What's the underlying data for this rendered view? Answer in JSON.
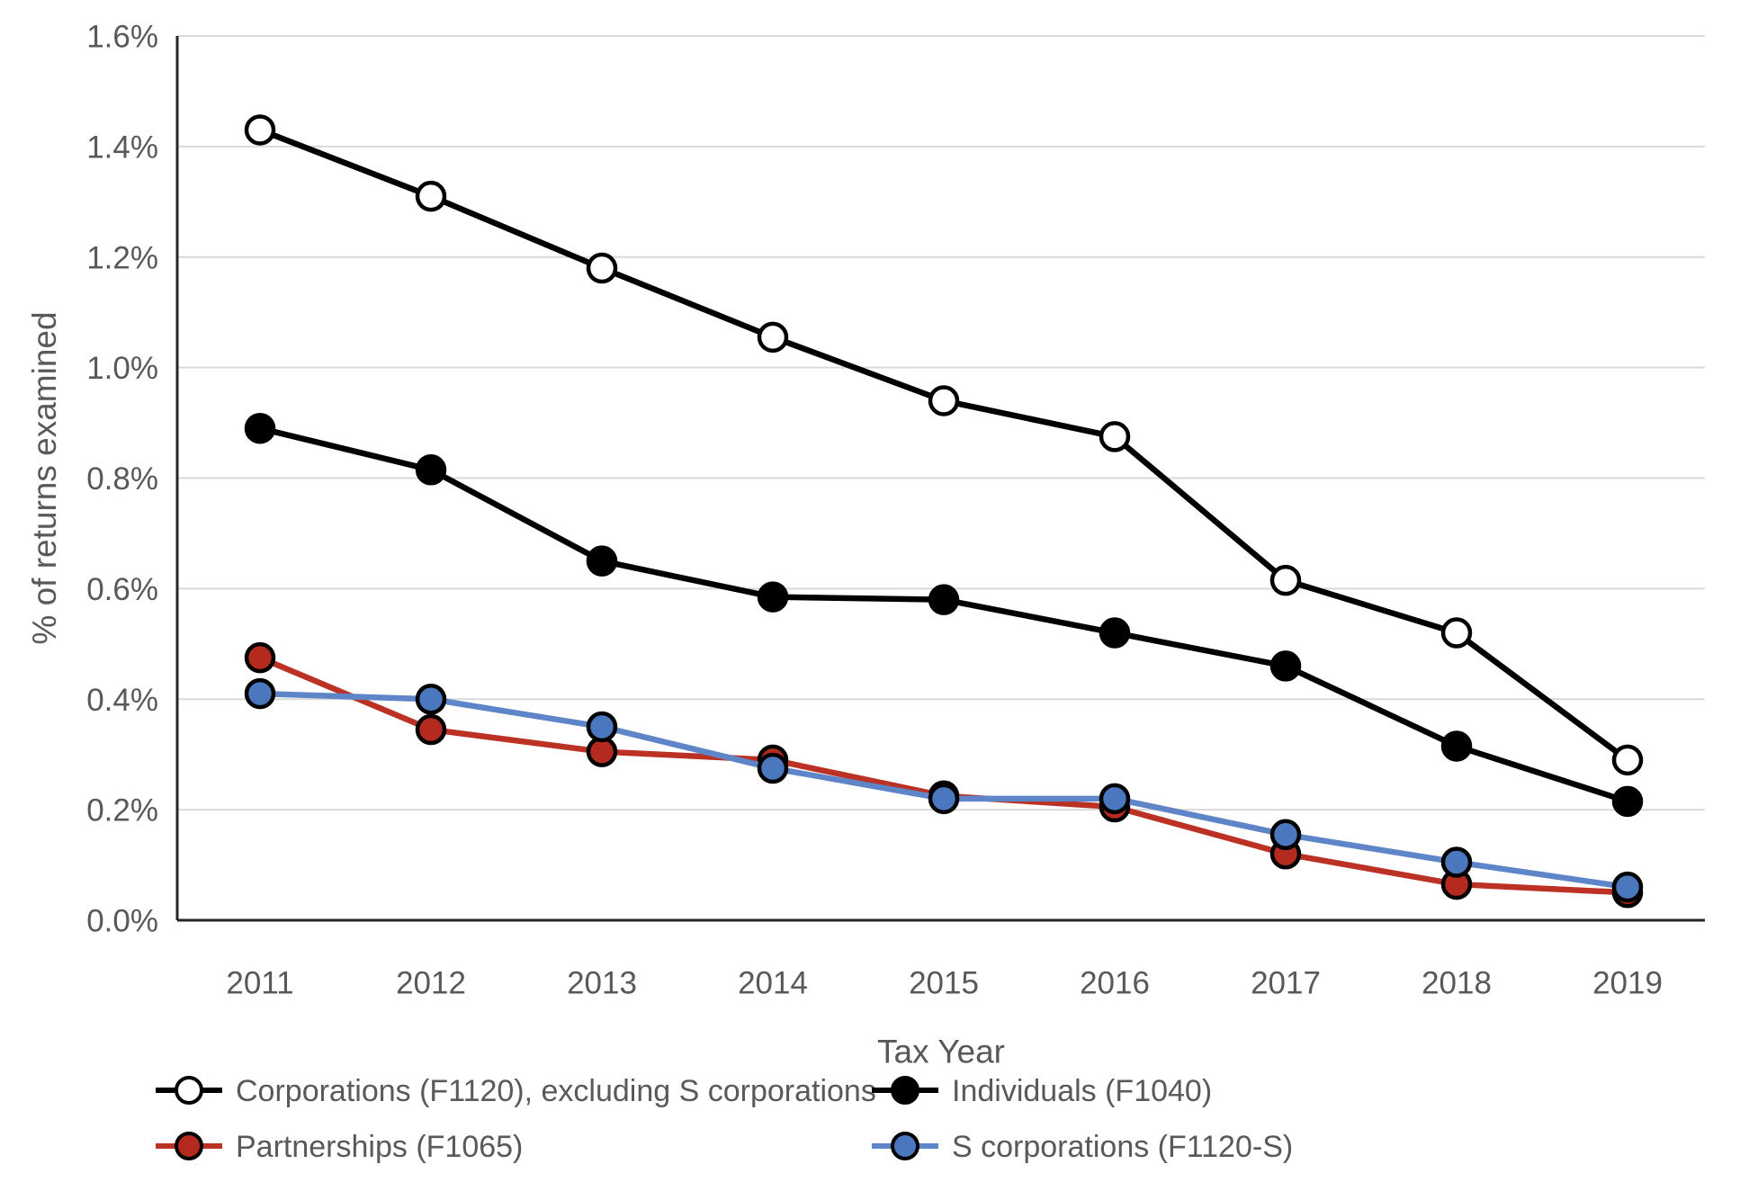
{
  "figure": {
    "description": "Line chart of IRS audit rates by return type, tax years 2011 to 2019"
  },
  "chart_data": {
    "type": "line",
    "title": "",
    "xlabel": "Tax Year",
    "ylabel": "% of returns examined",
    "x_categories": [
      "2011",
      "2012",
      "2013",
      "2014",
      "2015",
      "2016",
      "2017",
      "2018",
      "2019"
    ],
    "y_ticks": [
      "0.0%",
      "0.2%",
      "0.4%",
      "0.6%",
      "0.8%",
      "1.0%",
      "1.2%",
      "1.4%",
      "1.6%"
    ],
    "ylim": [
      0,
      1.6
    ],
    "y_unit": "percent",
    "grid": "horizontal",
    "legend_position": "bottom",
    "colors": {
      "axis": "#262626",
      "gridline": "#D9D9D9",
      "label_text": "#595959"
    },
    "series": [
      {
        "key": "corporations",
        "name": "Corporations (F1120), excluding S corporations",
        "values": [
          1.43,
          1.31,
          1.18,
          1.055,
          0.94,
          0.875,
          0.615,
          0.52,
          0.29
        ],
        "line_color": "#000000",
        "marker_fill": "#FFFFFF",
        "marker_border": "#000000",
        "marker_style": "open-circle"
      },
      {
        "key": "individuals",
        "name": "Individuals (F1040)",
        "values": [
          0.89,
          0.815,
          0.65,
          0.585,
          0.58,
          0.52,
          0.46,
          0.315,
          0.215
        ],
        "line_color": "#000000",
        "marker_fill": "#000000",
        "marker_border": "#000000",
        "marker_style": "filled-circle"
      },
      {
        "key": "partnerships",
        "name": "Partnerships (F1065)",
        "values": [
          0.475,
          0.345,
          0.305,
          0.29,
          0.225,
          0.205,
          0.12,
          0.065,
          0.05
        ],
        "line_color": "#BB3224",
        "marker_fill": "#B42A1E",
        "marker_border": "#000000",
        "marker_style": "filled-circle"
      },
      {
        "key": "s_corporations",
        "name": "S corporations (F1120-S)",
        "values": [
          0.41,
          0.4,
          0.35,
          0.275,
          0.22,
          0.22,
          0.155,
          0.105,
          0.06
        ],
        "line_color": "#5F85C9",
        "marker_fill": "#4B77BE",
        "marker_border": "#000000",
        "marker_style": "filled-circle"
      }
    ]
  }
}
